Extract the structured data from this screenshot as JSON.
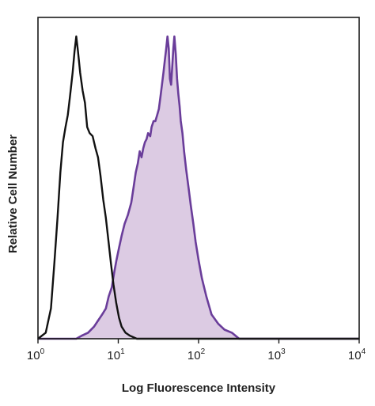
{
  "chart_data": {
    "type": "area",
    "xlabel": "Log Fluorescence Intensity",
    "ylabel": "Relative Cell Number",
    "x_scale": "log",
    "xlim": [
      1,
      10000
    ],
    "ylim": [
      0,
      1
    ],
    "grid": false,
    "x_ticks": [
      {
        "base": "10",
        "exp": "0",
        "value": 1
      },
      {
        "base": "10",
        "exp": "1",
        "value": 10
      },
      {
        "base": "10",
        "exp": "2",
        "value": 100
      },
      {
        "base": "10",
        "exp": "3",
        "value": 1000
      },
      {
        "base": "10",
        "exp": "4",
        "value": 10000
      }
    ],
    "series": [
      {
        "style": "outline",
        "color": "#111111",
        "points": [
          [
            1,
            0.0
          ],
          [
            1.25,
            0.02
          ],
          [
            1.45,
            0.1
          ],
          [
            1.6,
            0.25
          ],
          [
            1.75,
            0.4
          ],
          [
            1.9,
            0.55
          ],
          [
            2.05,
            0.65
          ],
          [
            2.2,
            0.7
          ],
          [
            2.35,
            0.74
          ],
          [
            2.5,
            0.8
          ],
          [
            2.7,
            0.88
          ],
          [
            2.85,
            0.95
          ],
          [
            3.0,
            1.0
          ],
          [
            3.15,
            0.95
          ],
          [
            3.35,
            0.88
          ],
          [
            3.6,
            0.82
          ],
          [
            3.85,
            0.78
          ],
          [
            4.1,
            0.7
          ],
          [
            4.4,
            0.68
          ],
          [
            4.8,
            0.67
          ],
          [
            5.2,
            0.63
          ],
          [
            5.6,
            0.6
          ],
          [
            6.0,
            0.54
          ],
          [
            6.5,
            0.46
          ],
          [
            7.0,
            0.4
          ],
          [
            7.5,
            0.33
          ],
          [
            8.1,
            0.25
          ],
          [
            8.7,
            0.18
          ],
          [
            9.4,
            0.12
          ],
          [
            10.2,
            0.07
          ],
          [
            11,
            0.04
          ],
          [
            12.3,
            0.02
          ],
          [
            14,
            0.01
          ],
          [
            17,
            0.0
          ],
          [
            30,
            0.0
          ],
          [
            100,
            0.0
          ],
          [
            10000,
            0.0
          ]
        ]
      },
      {
        "style": "filled",
        "color": "#6a3d9a",
        "fill": "#dccbe3",
        "points": [
          [
            1,
            0.0
          ],
          [
            3,
            0.0
          ],
          [
            3.5,
            0.01
          ],
          [
            4.2,
            0.02
          ],
          [
            5.0,
            0.04
          ],
          [
            5.6,
            0.06
          ],
          [
            6.3,
            0.08
          ],
          [
            7.0,
            0.1
          ],
          [
            7.6,
            0.14
          ],
          [
            8.3,
            0.17
          ],
          [
            8.9,
            0.22
          ],
          [
            9.5,
            0.26
          ],
          [
            10.2,
            0.3
          ],
          [
            11.0,
            0.34
          ],
          [
            12.0,
            0.38
          ],
          [
            13.2,
            0.41
          ],
          [
            14.5,
            0.45
          ],
          [
            15.5,
            0.5
          ],
          [
            16.5,
            0.55
          ],
          [
            17.5,
            0.58
          ],
          [
            18.5,
            0.62
          ],
          [
            19.5,
            0.6
          ],
          [
            20.5,
            0.63
          ],
          [
            21.5,
            0.65
          ],
          [
            22.5,
            0.66
          ],
          [
            23.5,
            0.68
          ],
          [
            25,
            0.67
          ],
          [
            26,
            0.7
          ],
          [
            27.5,
            0.72
          ],
          [
            29,
            0.72
          ],
          [
            30.5,
            0.74
          ],
          [
            32,
            0.76
          ],
          [
            33.5,
            0.8
          ],
          [
            35,
            0.84
          ],
          [
            36.5,
            0.88
          ],
          [
            38,
            0.92
          ],
          [
            39.5,
            0.96
          ],
          [
            41,
            1.0
          ],
          [
            42.5,
            0.96
          ],
          [
            44,
            0.86
          ],
          [
            45.5,
            0.84
          ],
          [
            47,
            0.9
          ],
          [
            48.5,
            0.96
          ],
          [
            50,
            1.0
          ],
          [
            52,
            0.94
          ],
          [
            54,
            0.86
          ],
          [
            56,
            0.81
          ],
          [
            58,
            0.77
          ],
          [
            60,
            0.72
          ],
          [
            63,
            0.68
          ],
          [
            66,
            0.62
          ],
          [
            70,
            0.56
          ],
          [
            75,
            0.5
          ],
          [
            80,
            0.44
          ],
          [
            86,
            0.38
          ],
          [
            92,
            0.32
          ],
          [
            100,
            0.26
          ],
          [
            110,
            0.2
          ],
          [
            125,
            0.14
          ],
          [
            145,
            0.08
          ],
          [
            175,
            0.05
          ],
          [
            210,
            0.03
          ],
          [
            260,
            0.02
          ],
          [
            320,
            0.0
          ],
          [
            10000,
            0.0
          ]
        ]
      }
    ]
  }
}
